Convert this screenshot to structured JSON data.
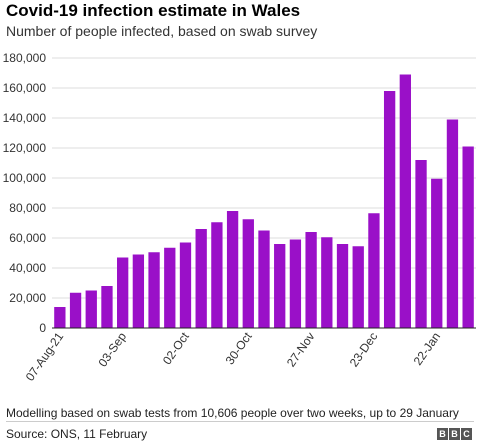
{
  "header": {
    "title": "Covid-19 infection estimate in Wales",
    "subtitle": "Number of people infected, based on swab survey"
  },
  "footer": {
    "note": "Modelling based on swab tests from 10,606 people over two weeks, up to 29 January",
    "source": "Source: ONS, 11 February",
    "logo": [
      "B",
      "B",
      "C"
    ]
  },
  "colors": {
    "bar": "#9a10c8",
    "grid": "#dddddd",
    "axis": "#222222"
  },
  "chart_data": {
    "type": "bar",
    "title": "Covid-19 infection estimate in Wales",
    "subtitle": "Number of people infected, based on swab survey",
    "ylim": [
      0,
      180000
    ],
    "yticks": [
      0,
      20000,
      40000,
      60000,
      80000,
      100000,
      120000,
      140000,
      160000,
      180000
    ],
    "ytick_labels": [
      "0",
      "20,000",
      "40,000",
      "60,000",
      "80,000",
      "100,000",
      "120,000",
      "140,000",
      "160,000",
      "180,000"
    ],
    "grid": true,
    "xtick_labels": [
      {
        "index": 0,
        "label": "07-Aug-21"
      },
      {
        "index": 4,
        "label": "03-Sep"
      },
      {
        "index": 8,
        "label": "02-Oct"
      },
      {
        "index": 12,
        "label": "30-Oct"
      },
      {
        "index": 16,
        "label": "27-Nov"
      },
      {
        "index": 20,
        "label": "23-Dec"
      },
      {
        "index": 24,
        "label": "22-Jan"
      }
    ],
    "values": [
      14000,
      23500,
      25000,
      28000,
      47000,
      49000,
      50500,
      53500,
      57000,
      66000,
      70500,
      78000,
      72500,
      65000,
      56000,
      59000,
      64000,
      60500,
      56000,
      54500,
      76500,
      158000,
      169000,
      112000,
      99500,
      139000,
      121000
    ]
  }
}
